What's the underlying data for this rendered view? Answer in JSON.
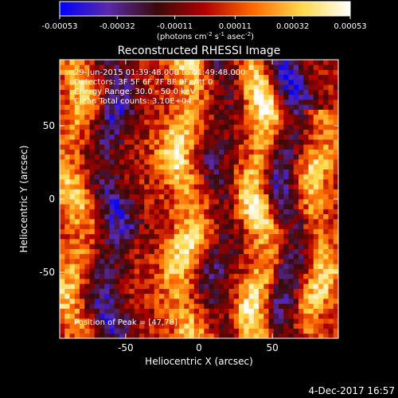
{
  "colorbar": {
    "ticks": [
      -0.00053,
      -0.00032,
      -0.00011,
      0.00011,
      0.00032,
      0.00053
    ],
    "tick_labels": [
      "-0.00053",
      "-0.00032",
      "-0.00011",
      "0.00011",
      "0.00032",
      "0.00053"
    ],
    "unit_parts": [
      "(photons cm",
      "-2",
      " s",
      "-1",
      " asec",
      "-2",
      ")"
    ],
    "range": [
      -0.00053,
      0.00053
    ],
    "colors": [
      "#0000ff",
      "#5a2aa8",
      "#3a0a0a",
      "#b00000",
      "#ff6a00",
      "#ffd84a",
      "#ffffff"
    ]
  },
  "chart_data": {
    "type": "heatmap",
    "title": "Reconstructed RHESSI Image",
    "xlabel": "Heliocentric X (arcsec)",
    "ylabel": "Heliocentric Y (arcsec)",
    "xlim": [
      -95,
      95
    ],
    "ylim": [
      -95,
      95
    ],
    "xticks": [
      -50,
      0,
      50
    ],
    "yticks": [
      50,
      0,
      -50
    ],
    "peak": [
      47,
      78
    ],
    "annotations": [
      "29-Jun-2015 01:39:48.000 to 01:49:48.000",
      "Detectors: 3F 5F 6F 7F 8F 9F, Att 0",
      "Energy Range: 30.0 - 50.0 keV",
      "Clean    Total counts: 3.10E+04"
    ],
    "peak_label": "Position of Peak = [47,78]",
    "features": [
      {
        "type": "ridge",
        "x": 42,
        "y": [
          -95,
          95
        ],
        "amplitude": 0.00053
      },
      {
        "type": "ridge",
        "x": -10,
        "y": [
          -95,
          95
        ],
        "amplitude": 0.00045
      },
      {
        "type": "ridge",
        "x": 80,
        "y": [
          -95,
          60
        ],
        "amplitude": 0.0004
      },
      {
        "type": "ridge",
        "x": -85,
        "y": [
          -95,
          95
        ],
        "amplitude": 0.00035
      },
      {
        "type": "trough",
        "x": -60,
        "y": [
          -95,
          95
        ],
        "amplitude": -0.0004
      },
      {
        "type": "trough",
        "x": 60,
        "y": [
          -95,
          95
        ],
        "amplitude": -0.00045
      },
      {
        "type": "trough",
        "x": 15,
        "y": [
          -95,
          95
        ],
        "amplitude": -0.00025
      }
    ]
  },
  "footer": {
    "date": "4-Dec-2017 16:57"
  }
}
